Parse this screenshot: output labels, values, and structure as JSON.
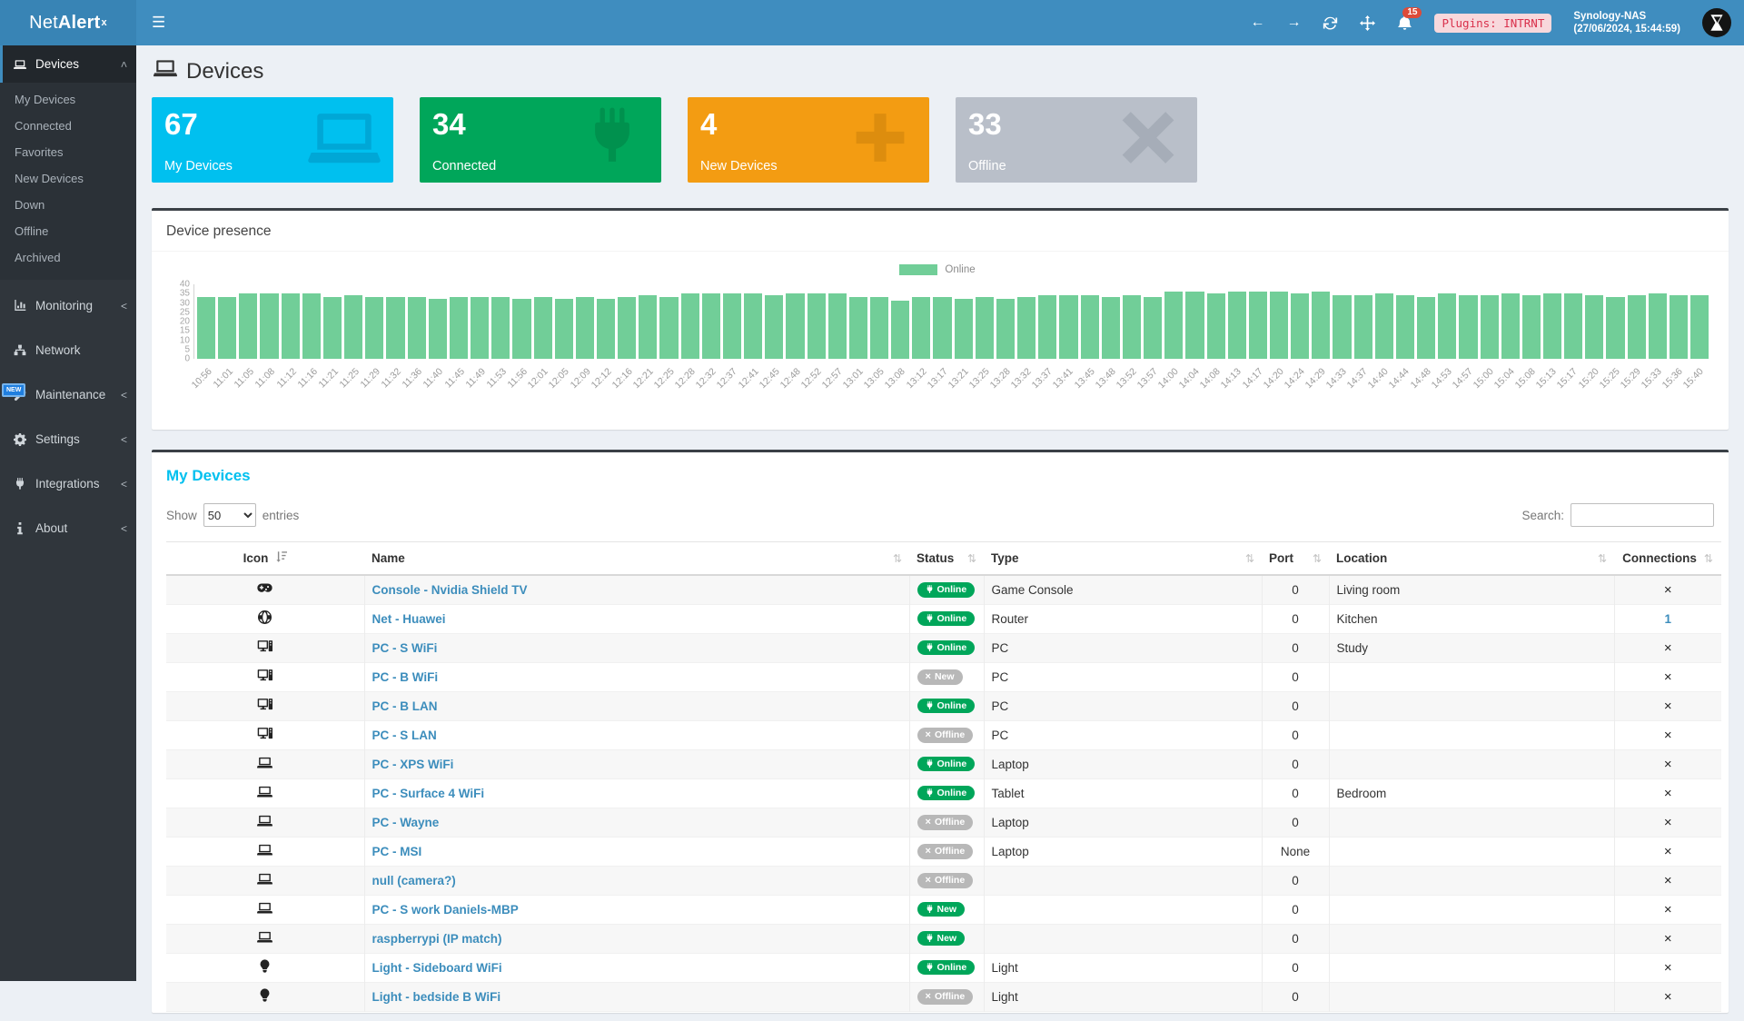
{
  "navbar": {
    "brand_prefix": "Net",
    "brand_bold": "Alert",
    "brand_sup": "x",
    "notifications_count": "15",
    "plugins_badge": "Plugins: INTRNT",
    "host_name": "Synology-NAS",
    "host_time": "(27/06/2024, 15:44:59)"
  },
  "sidebar": {
    "items": [
      {
        "label": "Devices",
        "icon": "laptop",
        "chevron": "down",
        "active": true,
        "submenu": [
          "My Devices",
          "Connected",
          "Favorites",
          "New Devices",
          "Down",
          "Offline",
          "Archived"
        ]
      },
      {
        "label": "Monitoring",
        "icon": "chart",
        "chevron": "left"
      },
      {
        "label": "Network",
        "icon": "network",
        "chevron": ""
      },
      {
        "label": "Maintenance",
        "icon": "wrench",
        "chevron": "left",
        "badge": "NEW"
      },
      {
        "label": "Settings",
        "icon": "gear",
        "chevron": "left"
      },
      {
        "label": "Integrations",
        "icon": "plug",
        "chevron": "left"
      },
      {
        "label": "About",
        "icon": "info",
        "chevron": "left"
      }
    ]
  },
  "page": {
    "title": "Devices"
  },
  "cards": [
    {
      "value": "67",
      "label": "My Devices",
      "color": "#00c0ef",
      "icon_color": "#00a7d6",
      "icon": "laptop"
    },
    {
      "value": "34",
      "label": "Connected",
      "color": "#00a65a",
      "icon_color": "#00914e",
      "icon": "plug"
    },
    {
      "value": "4",
      "label": "New Devices",
      "color": "#f39c12",
      "icon_color": "#dd8d0e",
      "icon": "plus"
    },
    {
      "value": "33",
      "label": "Offline",
      "color": "#b9bfc9",
      "icon_color": "#a6adb8",
      "icon": "cross"
    }
  ],
  "presence_box": {
    "title": "Device presence"
  },
  "chart_data": {
    "type": "bar",
    "title": "Device presence",
    "legend": [
      {
        "name": "Online",
        "color": "#71ce98"
      }
    ],
    "legend_position": "top-center",
    "grid": false,
    "ylim": [
      0,
      40
    ],
    "yticks": [
      0,
      5,
      10,
      15,
      20,
      25,
      30,
      35,
      40
    ],
    "xlabel": "",
    "ylabel": "",
    "categories": [
      "10:56",
      "11:01",
      "11:05",
      "11:08",
      "11:12",
      "11:16",
      "11:21",
      "11:25",
      "11:29",
      "11:32",
      "11:36",
      "11:40",
      "11:45",
      "11:49",
      "11:53",
      "11:56",
      "12:01",
      "12:05",
      "12:09",
      "12:12",
      "12:16",
      "12:21",
      "12:25",
      "12:28",
      "12:32",
      "12:37",
      "12:41",
      "12:45",
      "12:48",
      "12:52",
      "12:57",
      "13:01",
      "13:05",
      "13:08",
      "13:12",
      "13:17",
      "13:21",
      "13:25",
      "13:28",
      "13:32",
      "13:37",
      "13:41",
      "13:45",
      "13:48",
      "13:52",
      "13:57",
      "14:00",
      "14:04",
      "14:08",
      "14:13",
      "14:17",
      "14:20",
      "14:24",
      "14:29",
      "14:33",
      "14:37",
      "14:40",
      "14:44",
      "14:48",
      "14:53",
      "14:57",
      "15:00",
      "15:04",
      "15:08",
      "15:13",
      "15:17",
      "15:20",
      "15:25",
      "15:29",
      "15:33",
      "15:36",
      "15:40"
    ],
    "series": [
      {
        "name": "Online",
        "values": [
          33,
          33,
          35,
          35,
          35,
          35,
          33,
          34,
          33,
          33,
          33,
          32,
          33,
          33,
          33,
          32,
          33,
          32,
          33,
          32,
          33,
          34,
          33,
          35,
          35,
          35,
          35,
          34,
          35,
          35,
          35,
          33,
          33,
          31,
          33,
          33,
          32,
          33,
          32,
          33,
          34,
          34,
          34,
          33,
          34,
          33,
          36,
          36,
          35,
          36,
          36,
          36,
          35,
          36,
          34,
          34,
          35,
          34,
          33,
          35,
          34,
          34,
          35,
          34,
          35,
          35,
          34,
          33,
          34,
          35,
          34,
          34
        ]
      }
    ]
  },
  "table_box": {
    "title": "My Devices",
    "show_label": "Show",
    "entries_label": "entries",
    "page_length": "50",
    "search_label": "Search:",
    "search_value": "",
    "columns": [
      "Icon",
      "Name",
      "Status",
      "Type",
      "Port",
      "Location",
      "Connections"
    ],
    "rows": [
      {
        "icon": "gamepad",
        "name": "Console - Nvidia Shield TV",
        "status": "Online",
        "status_variant": "green",
        "status_icon": "plug",
        "type": "Game Console",
        "port": "0",
        "location": "Living room",
        "connections": "x"
      },
      {
        "icon": "globe",
        "name": "Net - Huawei",
        "status": "Online",
        "status_variant": "green",
        "status_icon": "plug",
        "type": "Router",
        "port": "0",
        "location": "Kitchen",
        "connections": "1"
      },
      {
        "icon": "desktop",
        "name": "PC - S WiFi",
        "status": "Online",
        "status_variant": "green",
        "status_icon": "plug",
        "type": "PC",
        "port": "0",
        "location": "Study",
        "connections": "x"
      },
      {
        "icon": "desktop",
        "name": "PC - B WiFi",
        "status": "New",
        "status_variant": "gray",
        "status_icon": "x",
        "type": "PC",
        "port": "0",
        "location": "",
        "connections": "x"
      },
      {
        "icon": "desktop",
        "name": "PC - B LAN",
        "status": "Online",
        "status_variant": "green",
        "status_icon": "plug",
        "type": "PC",
        "port": "0",
        "location": "",
        "connections": "x"
      },
      {
        "icon": "desktop",
        "name": "PC - S LAN",
        "status": "Offline",
        "status_variant": "gray",
        "status_icon": "x",
        "type": "PC",
        "port": "0",
        "location": "",
        "connections": "x"
      },
      {
        "icon": "laptop",
        "name": "PC - XPS WiFi",
        "status": "Online",
        "status_variant": "green",
        "status_icon": "plug",
        "type": "Laptop",
        "port": "0",
        "location": "",
        "connections": "x"
      },
      {
        "icon": "laptop",
        "name": "PC - Surface 4 WiFi",
        "status": "Online",
        "status_variant": "green",
        "status_icon": "plug",
        "type": "Tablet",
        "port": "0",
        "location": "Bedroom",
        "connections": "x"
      },
      {
        "icon": "laptop",
        "name": "PC - Wayne",
        "status": "Offline",
        "status_variant": "gray",
        "status_icon": "x",
        "type": "Laptop",
        "port": "0",
        "location": "",
        "connections": "x"
      },
      {
        "icon": "laptop",
        "name": "PC - MSI",
        "status": "Offline",
        "status_variant": "gray",
        "status_icon": "x",
        "type": "Laptop",
        "port": "None",
        "location": "",
        "connections": "x"
      },
      {
        "icon": "laptop",
        "name": "null (camera?)",
        "status": "Offline",
        "status_variant": "gray",
        "status_icon": "x",
        "type": "",
        "port": "0",
        "location": "",
        "connections": "x"
      },
      {
        "icon": "laptop",
        "name": "PC - S work Daniels-MBP",
        "status": "New",
        "status_variant": "green",
        "status_icon": "plug",
        "type": "",
        "port": "0",
        "location": "",
        "connections": "x"
      },
      {
        "icon": "laptop",
        "name": "raspberrypi (IP match)",
        "status": "New",
        "status_variant": "green",
        "status_icon": "plug",
        "type": "",
        "port": "0",
        "location": "",
        "connections": "x"
      },
      {
        "icon": "bulb",
        "name": "Light - Sideboard WiFi",
        "status": "Online",
        "status_variant": "green",
        "status_icon": "plug",
        "type": "Light",
        "port": "0",
        "location": "",
        "connections": "x"
      },
      {
        "icon": "bulb",
        "name": "Light - bedside B WiFi",
        "status": "Offline",
        "status_variant": "gray",
        "status_icon": "x",
        "type": "Light",
        "port": "0",
        "location": "",
        "connections": "x"
      }
    ]
  },
  "colors": {
    "navbar": "#3f8dbf",
    "sidebar": "#30363c",
    "accent_link": "#3c8dbc",
    "online_green": "#00a65a",
    "offline_gray": "#b8b8b8",
    "bar_green": "#71ce98",
    "title_cyan": "#00c0ef",
    "notification_red": "#dd4b39"
  }
}
